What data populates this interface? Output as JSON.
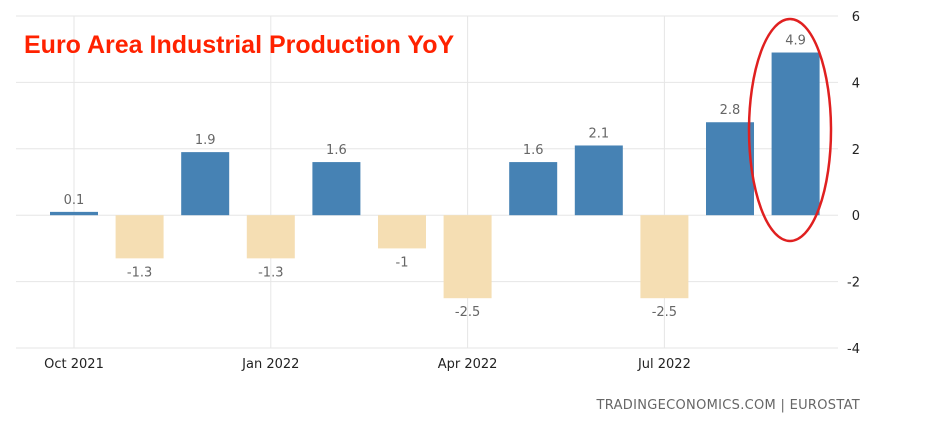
{
  "colors": {
    "positive": "#4682b4",
    "negative": "#f5deb3",
    "title": "#ff2200",
    "highlight": "#e02020",
    "grid": "#e6e6e6"
  },
  "chart_data": {
    "type": "bar",
    "title": "Euro Area Industrial Production YoY",
    "source": "TRADINGECONOMICS.COM | EUROSTAT",
    "categories": [
      "Oct 2021",
      "Nov 2021",
      "Dec 2021",
      "Jan 2022",
      "Feb 2022",
      "Mar 2022",
      "Apr 2022",
      "May 2022",
      "Jun 2022",
      "Jul 2022",
      "Aug 2022",
      "Sep 2022"
    ],
    "values": [
      0.1,
      -1.3,
      1.9,
      -1.3,
      1.6,
      -1,
      -2.5,
      1.6,
      2.1,
      -2.5,
      2.8,
      4.9
    ],
    "data_labels": [
      "0.1",
      "-1.3",
      "1.9",
      "-1.3",
      "1.6",
      "-1",
      "-2.5",
      "1.6",
      "2.1",
      "-2.5",
      "2.8",
      "4.9"
    ],
    "x_tick_labels": [
      "Oct 2021",
      "Jan 2022",
      "Apr 2022",
      "Jul 2022"
    ],
    "y_ticks": [
      6,
      4,
      2,
      0,
      -2,
      -4
    ],
    "ylim": [
      -4,
      6
    ],
    "y_axis_side": "right",
    "grid": true,
    "legend": "none",
    "highlighted_category": "Sep 2022"
  }
}
